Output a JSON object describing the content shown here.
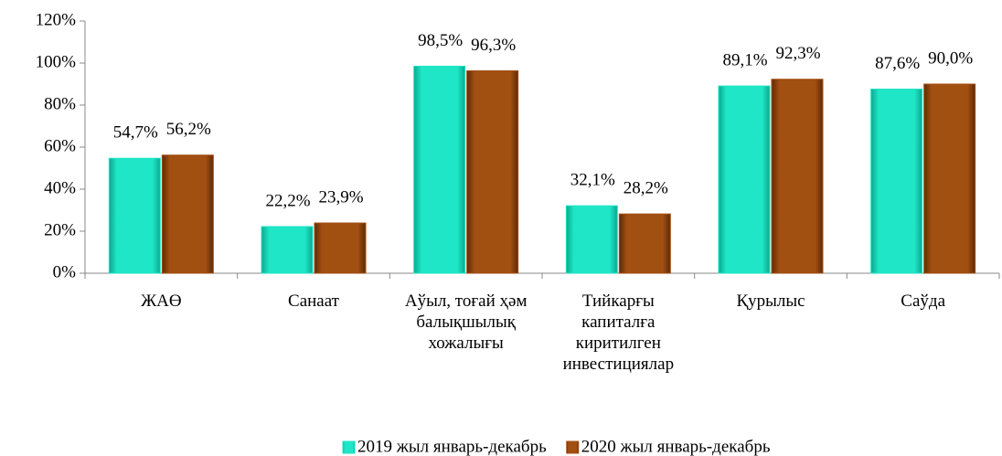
{
  "chart_data": {
    "type": "bar",
    "categories": [
      "ЖАӨ",
      "Санаат",
      "Аўыл, тоғай ҳәм\nбалықшылық\nхожалығы",
      "Тийкарғы\nкапиталға\nкиритилген\nинвестициялар",
      "Қурылыс",
      "Саўда"
    ],
    "series": [
      {
        "name": "2019 жыл январь-декабрь",
        "color": "#1ee6c6",
        "values": [
          54.7,
          22.2,
          98.5,
          32.1,
          89.1,
          87.6
        ],
        "value_labels": [
          "54,7%",
          "22,2%",
          "98,5%",
          "32,1%",
          "89,1%",
          "87,6%"
        ]
      },
      {
        "name": "2020 жыл январь-декабрь",
        "color": "#a24f12",
        "values": [
          56.2,
          23.9,
          96.3,
          28.2,
          92.3,
          90.0
        ],
        "value_labels": [
          "56,2%",
          "23,9%",
          "96,3%",
          "28,2%",
          "92,3%",
          "90,0%"
        ]
      }
    ],
    "ylim": [
      0,
      120
    ],
    "yticks": [
      {
        "value": 0,
        "label": "0%"
      },
      {
        "value": 20,
        "label": "20%"
      },
      {
        "value": 40,
        "label": "40%"
      },
      {
        "value": 60,
        "label": "60%"
      },
      {
        "value": 80,
        "label": "80%"
      },
      {
        "value": 100,
        "label": "100%"
      },
      {
        "value": 120,
        "label": "120%"
      }
    ],
    "legend": "bottom"
  }
}
